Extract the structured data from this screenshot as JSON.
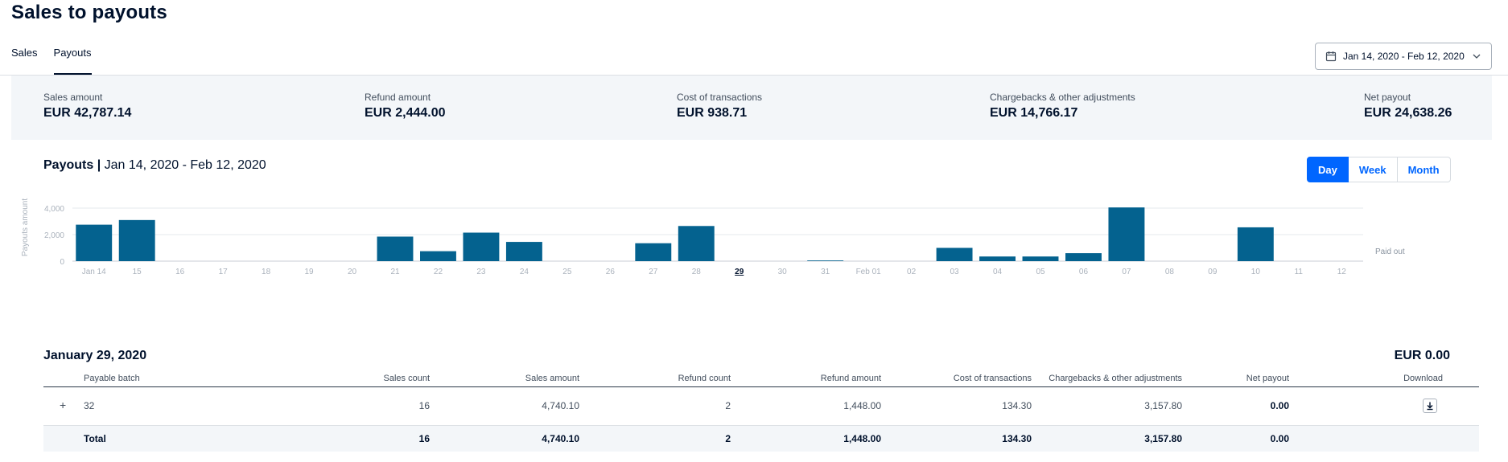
{
  "header": {
    "title": "Sales to payouts"
  },
  "tabs": [
    {
      "label": "Sales",
      "active": false
    },
    {
      "label": "Payouts",
      "active": true
    }
  ],
  "date_picker": {
    "value": "Jan 14, 2020 - Feb 12, 2020",
    "icon": "calendar-icon"
  },
  "summary": {
    "sales": {
      "label": "Sales amount",
      "value": "EUR 42,787.14"
    },
    "refund": {
      "label": "Refund amount",
      "value": "EUR 2,444.00"
    },
    "cost": {
      "label": "Cost of transactions",
      "value": "EUR 938.71"
    },
    "chargebacks": {
      "label": "Chargebacks & other adjustments",
      "value": "EUR 14,766.17"
    },
    "net": {
      "label": "Net payout",
      "value": "EUR 24,638.26"
    }
  },
  "chart_header": {
    "title": "Payouts",
    "separator": "|",
    "range": "Jan 14, 2020 - Feb 12, 2020"
  },
  "granularity": {
    "options": [
      "Day",
      "Week",
      "Month"
    ],
    "selected": "Day"
  },
  "chart_data": {
    "type": "bar",
    "ylabel": "Payouts amount",
    "ylim": [
      0,
      4000
    ],
    "yticks": [
      "0",
      "2,000",
      "4,000"
    ],
    "grid": true,
    "legend": {
      "position": "right",
      "entries": [
        "Paid out"
      ]
    },
    "bar_color": "#04628f",
    "selected_category": "29",
    "categories": [
      "Jan 14",
      "15",
      "16",
      "17",
      "18",
      "19",
      "20",
      "21",
      "22",
      "23",
      "24",
      "25",
      "26",
      "27",
      "28",
      "29",
      "30",
      "31",
      "Feb 01",
      "02",
      "03",
      "04",
      "05",
      "06",
      "07",
      "08",
      "09",
      "10",
      "11",
      "12"
    ],
    "series": [
      {
        "name": "Paid out",
        "values": [
          2750,
          3100,
          0,
          0,
          0,
          0,
          0,
          1850,
          750,
          2150,
          1450,
          0,
          0,
          1350,
          2650,
          0,
          0,
          50,
          0,
          0,
          1000,
          350,
          350,
          600,
          4050,
          0,
          0,
          2550,
          0,
          0
        ]
      }
    ]
  },
  "detail": {
    "date": "January 29, 2020",
    "total": "EUR 0.00",
    "columns": {
      "batch": "Payable batch",
      "sales_count": "Sales count",
      "sales_amount": "Sales amount",
      "refund_count": "Refund count",
      "refund_amount": "Refund amount",
      "cost": "Cost of transactions",
      "chargebacks": "Chargebacks & other adjustments",
      "net": "Net payout",
      "download": "Download"
    },
    "row": {
      "expand": "+",
      "batch": "32",
      "sales_count": "16",
      "sales_amount": "4,740.10",
      "refund_count": "2",
      "refund_amount": "1,448.00",
      "cost": "134.30",
      "chargebacks": "3,157.80",
      "net": "0.00"
    },
    "total_row": {
      "label": "Total",
      "sales_count": "16",
      "sales_amount": "4,740.10",
      "refund_count": "2",
      "refund_amount": "1,448.00",
      "cost": "134.30",
      "chargebacks": "3,157.80",
      "net": "0.00"
    }
  }
}
